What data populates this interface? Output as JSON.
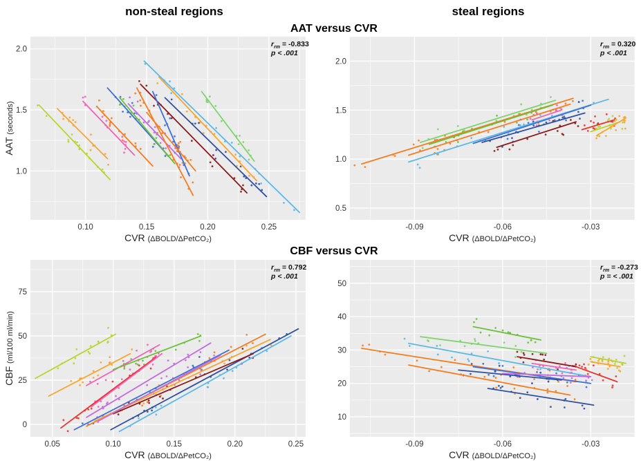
{
  "headers": {
    "left": "non-steal regions",
    "right": "steal regions",
    "row1": "AAT versus CVR",
    "row2": "CBF versus CVR"
  },
  "colors": {
    "background": "#ebebeb",
    "grid": "#ffffff",
    "palette": [
      "#b7d52a",
      "#f9a52b",
      "#f062b3",
      "#f47d20",
      "#3c6fd8",
      "#c56ae0",
      "#6bbf3a",
      "#8b1a1a",
      "#2f4f9f",
      "#5cb8e6",
      "#7ed36f",
      "#e8342c"
    ]
  },
  "chart_data": [
    {
      "id": "aat-nonsteal",
      "type": "scatter",
      "title": "",
      "xlabel_main": "CVR",
      "xlabel_unit": "(ΔBOLD/ΔPetCO₂)",
      "ylabel_main": "AAT",
      "ylabel_unit": "(seconds)",
      "xlim": [
        0.055,
        0.28
      ],
      "ylim": [
        0.6,
        2.1
      ],
      "xticks": [
        0.1,
        0.15,
        0.2,
        0.25
      ],
      "xtick_labels": [
        "0.10",
        "0.15",
        "0.20",
        "0.25"
      ],
      "yticks": [
        1.0,
        1.5,
        2.0
      ],
      "ytick_labels": [
        "1.0",
        "1.5",
        "2.0"
      ],
      "annotation": {
        "r_label": "r",
        "r_sub": "rm",
        "r_value": "= -0.833",
        "p_text": "p < .001"
      },
      "series": [
        {
          "color": 0,
          "line": [
            [
              0.062,
              1.54
            ],
            [
              0.12,
              0.93
            ]
          ]
        },
        {
          "color": 1,
          "line": [
            [
              0.077,
              1.51
            ],
            [
              0.118,
              1.1
            ]
          ]
        },
        {
          "color": 2,
          "line": [
            [
              0.098,
              1.57
            ],
            [
              0.14,
              1.13
            ]
          ]
        },
        {
          "color": 3,
          "line": [
            [
              0.11,
              1.52
            ],
            [
              0.155,
              1.04
            ]
          ]
        },
        {
          "color": 4,
          "line": [
            [
              0.118,
              1.68
            ],
            [
              0.168,
              1.12
            ]
          ]
        },
        {
          "color": 6,
          "line": [
            [
              0.128,
              1.6
            ],
            [
              0.173,
              1.06
            ]
          ]
        },
        {
          "color": 5,
          "line": [
            [
              0.135,
              1.55
            ],
            [
              0.178,
              1.1
            ]
          ]
        },
        {
          "color": 3,
          "line": [
            [
              0.142,
              1.68
            ],
            [
              0.188,
              0.8
            ]
          ]
        },
        {
          "color": 7,
          "line": [
            [
              0.145,
              1.71
            ],
            [
              0.232,
              0.82
            ]
          ]
        },
        {
          "color": 4,
          "line": [
            [
              0.155,
              1.65
            ],
            [
              0.185,
              0.96
            ]
          ]
        },
        {
          "color": 1,
          "line": [
            [
              0.16,
              1.77
            ],
            [
              0.24,
              0.92
            ]
          ]
        },
        {
          "color": 8,
          "line": [
            [
              0.165,
              1.6
            ],
            [
              0.248,
              0.79
            ]
          ]
        },
        {
          "color": 9,
          "line": [
            [
              0.148,
              1.9
            ],
            [
              0.275,
              0.66
            ]
          ]
        },
        {
          "color": 10,
          "line": [
            [
              0.195,
              1.65
            ],
            [
              0.238,
              1.08
            ]
          ]
        },
        {
          "color": 3,
          "line": [
            [
              0.15,
              1.48
            ],
            [
              0.19,
              1.0
            ]
          ]
        }
      ]
    },
    {
      "id": "aat-steal",
      "type": "scatter",
      "title": "",
      "xlabel_main": "CVR",
      "xlabel_unit": "(ΔBOLD/ΔPetCO₂)",
      "xlim": [
        -0.112,
        -0.015
      ],
      "ylim": [
        0.38,
        2.25
      ],
      "xticks": [
        -0.09,
        -0.06,
        -0.03
      ],
      "xtick_labels": [
        "-0.09",
        "-0.06",
        "-0.03"
      ],
      "yticks": [
        0.5,
        1.0,
        1.5,
        2.0
      ],
      "ytick_labels": [
        "0.5",
        "1.0",
        "1.5",
        "2.0"
      ],
      "annotation": {
        "r_label": "r",
        "r_sub": "rm",
        "r_value": "= 0.320",
        "p_text": "p < .001"
      },
      "series": [
        {
          "color": 3,
          "line": [
            [
              -0.108,
              0.95
            ],
            [
              -0.036,
              1.62
            ]
          ]
        },
        {
          "color": 3,
          "line": [
            [
              -0.092,
              1.04
            ],
            [
              -0.037,
              1.56
            ]
          ]
        },
        {
          "color": 9,
          "line": [
            [
              -0.092,
              0.97
            ],
            [
              -0.024,
              1.61
            ]
          ]
        },
        {
          "color": 10,
          "line": [
            [
              -0.088,
              1.17
            ],
            [
              -0.042,
              1.6
            ]
          ]
        },
        {
          "color": 6,
          "line": [
            [
              -0.085,
              1.15
            ],
            [
              -0.043,
              1.55
            ]
          ]
        },
        {
          "color": 2,
          "line": [
            [
              -0.05,
              1.4
            ],
            [
              -0.04,
              1.5
            ]
          ]
        },
        {
          "color": 4,
          "line": [
            [
              -0.07,
              1.16
            ],
            [
              -0.03,
              1.55
            ]
          ]
        },
        {
          "color": 8,
          "line": [
            [
              -0.067,
              1.17
            ],
            [
              -0.032,
              1.47
            ]
          ]
        },
        {
          "color": 7,
          "line": [
            [
              -0.062,
              1.12
            ],
            [
              -0.035,
              1.38
            ]
          ]
        },
        {
          "color": 0,
          "line": [
            [
              -0.03,
              1.28
            ],
            [
              -0.02,
              1.38
            ]
          ]
        },
        {
          "color": 1,
          "line": [
            [
              -0.028,
              1.24
            ],
            [
              -0.018,
              1.42
            ]
          ]
        },
        {
          "color": 11,
          "line": [
            [
              -0.033,
              1.3
            ],
            [
              -0.022,
              1.4
            ]
          ]
        }
      ]
    },
    {
      "id": "cbf-nonsteal",
      "type": "scatter",
      "title": "",
      "xlabel_main": "CVR",
      "xlabel_unit": "(ΔBOLD/ΔPetCO₂)",
      "ylabel_main": "CBF",
      "ylabel_unit": "(ml/100 ml/min)",
      "xlim": [
        0.032,
        0.258
      ],
      "ylim": [
        -7,
        93
      ],
      "xticks": [
        0.05,
        0.1,
        0.15,
        0.2,
        0.25
      ],
      "xtick_labels": [
        "0.05",
        "0.10",
        "0.15",
        "0.20",
        "0.25"
      ],
      "yticks": [
        0,
        25,
        50,
        75
      ],
      "ytick_labels": [
        "0",
        "25",
        "50",
        "75"
      ],
      "annotation": {
        "r_label": "r",
        "r_sub": "rm",
        "r_value": "= 0.792",
        "p_text": "p < .001"
      },
      "series": [
        {
          "color": 0,
          "line": [
            [
              0.036,
              26
            ],
            [
              0.102,
              51
            ]
          ]
        },
        {
          "color": 1,
          "line": [
            [
              0.047,
              16
            ],
            [
              0.114,
              40
            ]
          ]
        },
        {
          "color": 2,
          "line": [
            [
              0.078,
              22
            ],
            [
              0.138,
              45
            ]
          ]
        },
        {
          "color": 6,
          "line": [
            [
              0.1,
              31
            ],
            [
              0.172,
              50
            ]
          ]
        },
        {
          "color": 11,
          "line": [
            [
              0.057,
              -2
            ],
            [
              0.135,
              38
            ]
          ]
        },
        {
          "color": 5,
          "line": [
            [
              0.078,
              4
            ],
            [
              0.18,
              46
            ]
          ]
        },
        {
          "color": 2,
          "line": [
            [
              0.082,
              10
            ],
            [
              0.14,
              40
            ]
          ]
        },
        {
          "color": 3,
          "line": [
            [
              0.078,
              -1
            ],
            [
              0.225,
              51
            ]
          ]
        },
        {
          "color": 1,
          "line": [
            [
              0.085,
              2
            ],
            [
              0.229,
              48
            ]
          ]
        },
        {
          "color": 4,
          "line": [
            [
              0.068,
              -3
            ],
            [
              0.195,
              42
            ]
          ]
        },
        {
          "color": 8,
          "line": [
            [
              0.098,
              -3
            ],
            [
              0.252,
              54
            ]
          ]
        },
        {
          "color": 9,
          "line": [
            [
              0.105,
              -4
            ],
            [
              0.246,
              50
            ]
          ]
        },
        {
          "color": 7,
          "line": [
            [
              0.1,
              6
            ],
            [
              0.215,
              40
            ]
          ]
        },
        {
          "color": 5,
          "line": [
            [
              0.088,
              2
            ],
            [
              0.188,
              39
            ]
          ]
        }
      ]
    },
    {
      "id": "cbf-steal",
      "type": "scatter",
      "title": "",
      "xlabel_main": "CVR",
      "xlabel_unit": "(ΔBOLD/ΔPetCO₂)",
      "xlim": [
        -0.112,
        -0.015
      ],
      "ylim": [
        4,
        57
      ],
      "xticks": [
        -0.09,
        -0.06,
        -0.03
      ],
      "xtick_labels": [
        "-0.09",
        "-0.06",
        "-0.03"
      ],
      "yticks": [
        10,
        20,
        30,
        40,
        50
      ],
      "ytick_labels": [
        "10",
        "20",
        "30",
        "40",
        "50"
      ],
      "annotation": {
        "r_label": "r",
        "r_sub": "rm",
        "r_value": "= -0.273",
        "p_text": "p = < .001"
      },
      "series": [
        {
          "color": 3,
          "line": [
            [
              -0.108,
              30.5
            ],
            [
              -0.035,
              20.5
            ]
          ]
        },
        {
          "color": 3,
          "line": [
            [
              -0.092,
              25.5
            ],
            [
              -0.037,
              16.5
            ]
          ]
        },
        {
          "color": 9,
          "line": [
            [
              -0.092,
              32
            ],
            [
              -0.03,
              22
            ]
          ]
        },
        {
          "color": 10,
          "line": [
            [
              -0.088,
              34
            ],
            [
              -0.045,
              29
            ]
          ]
        },
        {
          "color": 6,
          "line": [
            [
              -0.07,
              37
            ],
            [
              -0.047,
              33
            ]
          ]
        },
        {
          "color": 7,
          "line": [
            [
              -0.055,
              28
            ],
            [
              -0.035,
              25
            ]
          ]
        },
        {
          "color": 2,
          "line": [
            [
              -0.05,
              26
            ],
            [
              -0.035,
              24
            ]
          ]
        },
        {
          "color": 4,
          "line": [
            [
              -0.07,
              25
            ],
            [
              -0.03,
              20
            ]
          ]
        },
        {
          "color": 8,
          "line": [
            [
              -0.075,
              24
            ],
            [
              -0.04,
              21
            ]
          ]
        },
        {
          "color": 5,
          "line": [
            [
              -0.06,
              23
            ],
            [
              -0.03,
              22
            ]
          ]
        },
        {
          "color": 8,
          "line": [
            [
              -0.065,
              18.5
            ],
            [
              -0.029,
              13.5
            ]
          ]
        },
        {
          "color": 11,
          "line": [
            [
              -0.035,
              25
            ],
            [
              -0.021,
              20.5
            ]
          ]
        },
        {
          "color": 0,
          "line": [
            [
              -0.03,
              28
            ],
            [
              -0.018,
              26
            ]
          ]
        },
        {
          "color": 1,
          "line": [
            [
              -0.03,
              26.5
            ],
            [
              -0.02,
              25
            ]
          ]
        }
      ]
    }
  ]
}
